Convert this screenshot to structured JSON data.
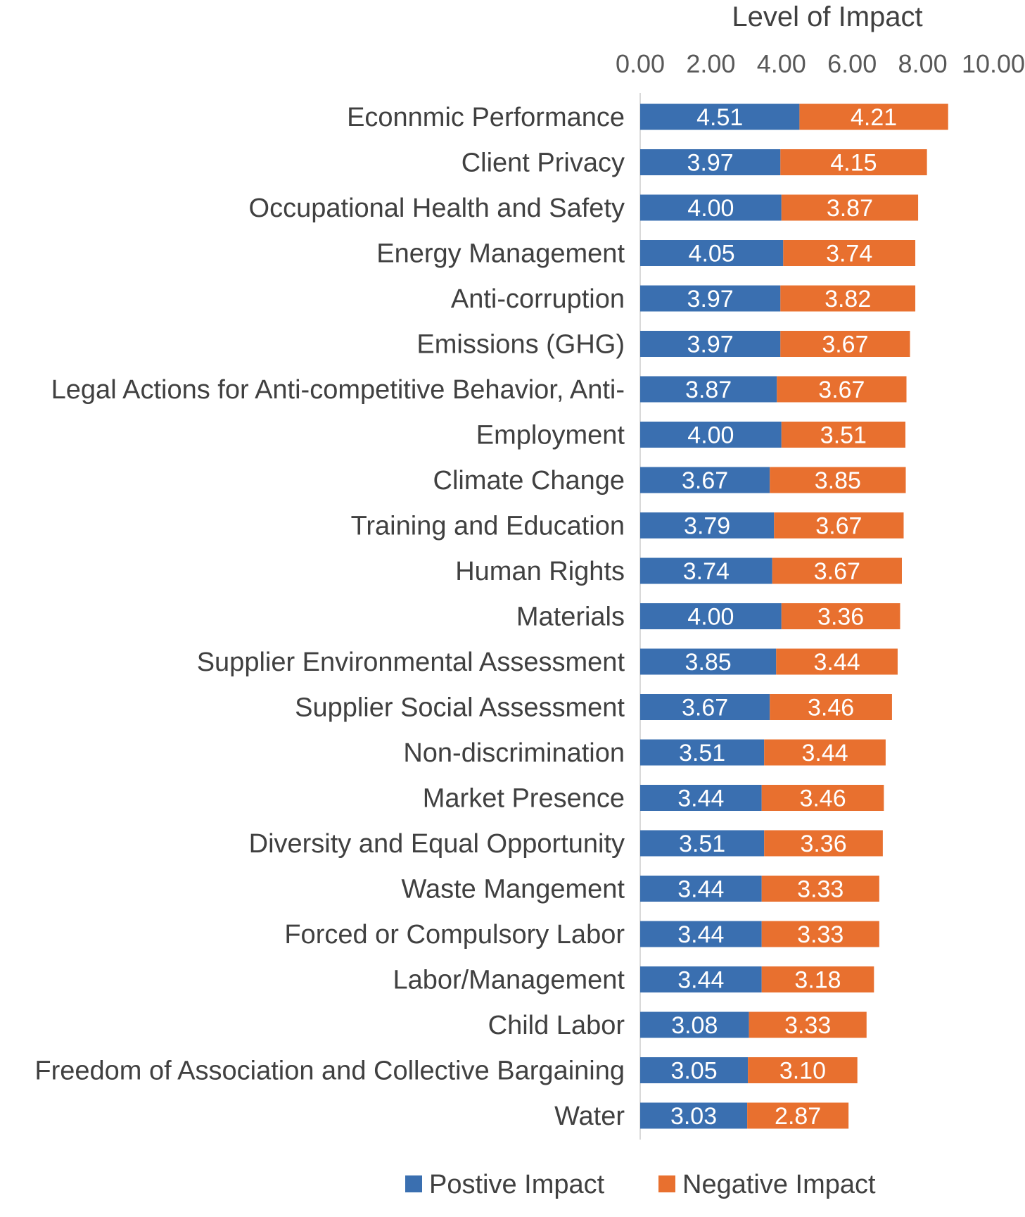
{
  "chart_data": {
    "type": "bar",
    "orientation": "horizontal",
    "stacked": true,
    "axis_title": "Level of Impact",
    "x_ticks": [
      "0.00",
      "2.00",
      "4.00",
      "6.00",
      "8.00",
      "10.00"
    ],
    "xlim": [
      0,
      10
    ],
    "categories": [
      "Econnmic Performance",
      "Client Privacy",
      "Occupational Health and Safety",
      "Energy Management",
      "Anti-corruption",
      "Emissions (GHG)",
      "Legal Actions for Anti-competitive Behavior, Anti-",
      "Employment",
      "Climate Change",
      "Training and Education",
      "Human Rights",
      "Materials",
      "Supplier Environmental Assessment",
      "Supplier Social Assessment",
      "Non-discrimination",
      "Market Presence",
      "Diversity and Equal Opportunity",
      "Waste Mangement",
      "Forced or Compulsory Labor",
      "Labor/Management",
      "Child Labor",
      "Freedom of Association and Collective Bargaining",
      "Water"
    ],
    "series": [
      {
        "name": "Postive Impact",
        "color": "#3a6fb0",
        "values": [
          4.51,
          3.97,
          4.0,
          4.05,
          3.97,
          3.97,
          3.87,
          4.0,
          3.67,
          3.79,
          3.74,
          4.0,
          3.85,
          3.67,
          3.51,
          3.44,
          3.51,
          3.44,
          3.44,
          3.44,
          3.08,
          3.05,
          3.03
        ],
        "labels": [
          "4.51",
          "3.97",
          "4.00",
          "4.05",
          "3.97",
          "3.97",
          "3.87",
          "4.00",
          "3.67",
          "3.79",
          "3.74",
          "4.00",
          "3.85",
          "3.67",
          "3.51",
          "3.44",
          "3.51",
          "3.44",
          "3.44",
          "3.44",
          "3.08",
          "3.05",
          "3.03"
        ]
      },
      {
        "name": "Negative Impact",
        "color": "#e8702f",
        "values": [
          4.21,
          4.15,
          3.87,
          3.74,
          3.82,
          3.67,
          3.67,
          3.51,
          3.85,
          3.67,
          3.67,
          3.36,
          3.44,
          3.46,
          3.44,
          3.46,
          3.36,
          3.33,
          3.33,
          3.18,
          3.33,
          3.1,
          2.87
        ],
        "labels": [
          "4.21",
          "4.15",
          "3.87",
          "3.74",
          "3.82",
          "3.67",
          "3.67",
          "3.51",
          "3.85",
          "3.67",
          "3.67",
          "3.36",
          "3.44",
          "3.46",
          "3.44",
          "3.46",
          "3.36",
          "3.33",
          "3.33",
          "3.18",
          "3.33",
          "3.10",
          "2.87"
        ]
      }
    ],
    "legend": [
      "Postive Impact",
      "Negative Impact"
    ],
    "legend_position": "bottom"
  }
}
